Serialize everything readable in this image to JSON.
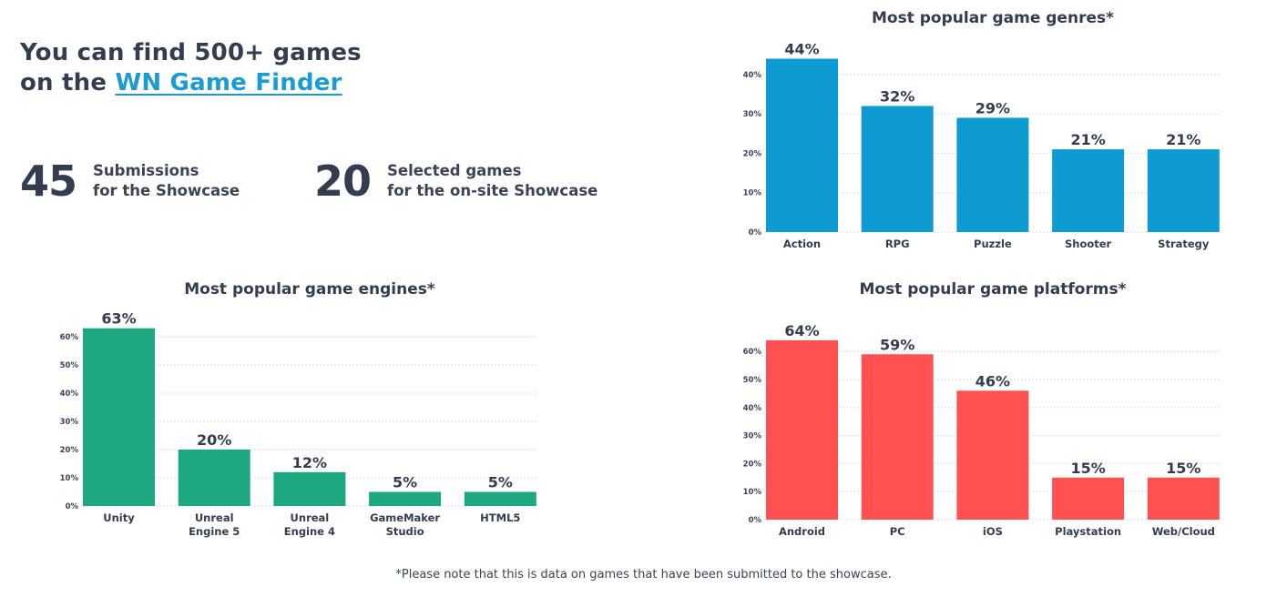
{
  "headline": {
    "line1": "You can find 500+ games",
    "line2_prefix": "on the ",
    "link_text": "WN Game Finder"
  },
  "stats": [
    {
      "number": "45",
      "line1": "Submissions",
      "line2": "for the Showcase"
    },
    {
      "number": "20",
      "line1": "Selected games",
      "line2": "for the on-site Showcase"
    }
  ],
  "footnote": "*Please note that this is data on games that have been submitted to the showcase.",
  "colors": {
    "genres": "#0e9bd1",
    "engines": "#1da882",
    "platforms": "#ff5052",
    "text": "#333d4f",
    "link": "#1a9bd3"
  },
  "chart_data": [
    {
      "id": "genres",
      "type": "bar",
      "title": "Most popular game genres*",
      "categories": [
        [
          "Action"
        ],
        [
          "RPG"
        ],
        [
          "Puzzle"
        ],
        [
          "Shooter"
        ],
        [
          "Strategy"
        ]
      ],
      "values": [
        44,
        32,
        29,
        21,
        21
      ],
      "value_labels": [
        "44%",
        "32%",
        "29%",
        "21%",
        "21%"
      ],
      "yticks": [
        0,
        10,
        20,
        30,
        40
      ],
      "ytick_labels": [
        "0%",
        "10%",
        "20%",
        "30%",
        "40%"
      ],
      "ylim": [
        0,
        44
      ],
      "xlabel": "",
      "ylabel": "",
      "grid": true,
      "legend": "none"
    },
    {
      "id": "engines",
      "type": "bar",
      "title": "Most popular game engines*",
      "categories": [
        [
          "Unity"
        ],
        [
          "Unreal",
          "Engine 5"
        ],
        [
          "Unreal",
          "Engine 4"
        ],
        [
          "GameMaker",
          "Studio"
        ],
        [
          "HTML5"
        ]
      ],
      "values": [
        63,
        20,
        12,
        5,
        5
      ],
      "value_labels": [
        "63%",
        "20%",
        "12%",
        "5%",
        "5%"
      ],
      "yticks": [
        0,
        10,
        20,
        30,
        40,
        50,
        60
      ],
      "ytick_labels": [
        "0%",
        "10%",
        "20%",
        "30%",
        "40%",
        "50%",
        "60%"
      ],
      "ylim": [
        0,
        63
      ],
      "xlabel": "",
      "ylabel": "",
      "grid": true,
      "legend": "none"
    },
    {
      "id": "platforms",
      "type": "bar",
      "title": "Most popular game platforms*",
      "categories": [
        [
          "Android"
        ],
        [
          "PC"
        ],
        [
          "iOS"
        ],
        [
          "Playstation"
        ],
        [
          "Web/Cloud"
        ]
      ],
      "values": [
        64,
        59,
        46,
        15,
        15
      ],
      "value_labels": [
        "64%",
        "59%",
        "46%",
        "15%",
        "15%"
      ],
      "yticks": [
        0,
        10,
        20,
        30,
        40,
        50,
        60
      ],
      "ytick_labels": [
        "0%",
        "10%",
        "20%",
        "30%",
        "40%",
        "50%",
        "60%"
      ],
      "ylim": [
        0,
        64
      ],
      "xlabel": "",
      "ylabel": "",
      "grid": true,
      "legend": "none"
    }
  ]
}
